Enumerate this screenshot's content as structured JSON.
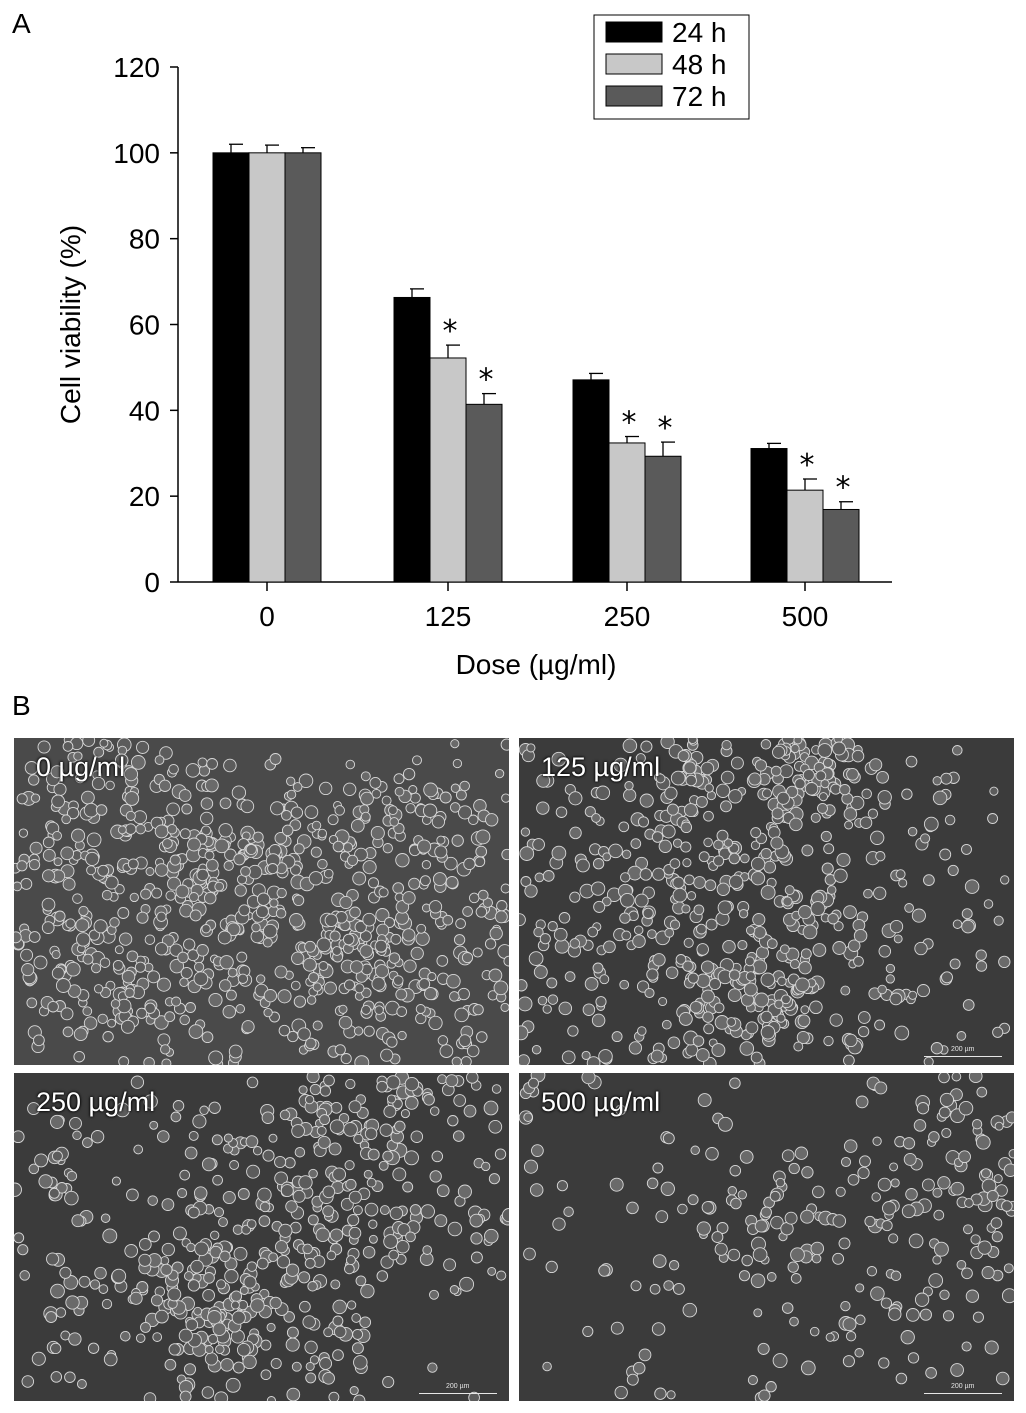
{
  "panel_a_letter": "A",
  "panel_b_letter": "B",
  "chart_data": {
    "type": "bar",
    "xlabel": "Dose (µg/ml)",
    "ylabel": "Cell viability (%)",
    "ylim": [
      0,
      120
    ],
    "yticks": [
      "0",
      "20",
      "40",
      "60",
      "80",
      "100",
      "120"
    ],
    "categories": [
      "0",
      "125",
      "250",
      "500"
    ],
    "legend_position": "top-right",
    "grid": false,
    "series": [
      {
        "name": "24 h",
        "color": "#000000",
        "values": [
          100,
          66.3,
          47.1,
          31.1
        ],
        "errors": [
          2.0,
          2.0,
          1.5,
          1.2
        ],
        "significant": [
          false,
          false,
          false,
          false
        ]
      },
      {
        "name": "48 h",
        "color": "#c8c8c8",
        "values": [
          100,
          52.2,
          32.4,
          21.4
        ],
        "errors": [
          1.8,
          3.0,
          1.5,
          2.6
        ],
        "significant": [
          false,
          true,
          true,
          true
        ]
      },
      {
        "name": "72 h",
        "color": "#5a5a5a",
        "values": [
          100,
          41.4,
          29.3,
          16.9
        ],
        "errors": [
          1.2,
          2.5,
          3.3,
          1.8
        ],
        "significant": [
          false,
          true,
          true,
          true
        ]
      }
    ],
    "significance_marker": "*"
  },
  "micrographs": [
    {
      "label": "0 µg/ml",
      "scale": "200 µm",
      "density": 0.9
    },
    {
      "label": "125 µg/ml",
      "scale": "200 µm",
      "density": 0.62
    },
    {
      "label": "250 µg/ml",
      "scale": "200 µm",
      "density": 0.45
    },
    {
      "label": "500 µg/ml",
      "scale": "200 µm",
      "density": 0.18
    }
  ]
}
